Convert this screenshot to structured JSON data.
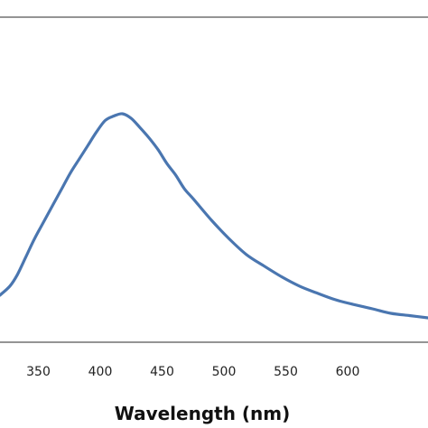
{
  "chart_data": {
    "type": "line",
    "title": "",
    "xlabel": "Wavelength (nm)",
    "ylabel": "",
    "xlim": [
      319,
      665
    ],
    "ylim": [
      0,
      1
    ],
    "x_ticks": [
      350,
      400,
      450,
      500,
      550,
      600
    ],
    "x_tick_labels": [
      "350",
      "400",
      "450",
      "500",
      "550",
      "600"
    ],
    "grid": false,
    "legend": "none",
    "series": [
      {
        "color": "#4a76b0",
        "x": [
          319,
          327,
          333,
          340,
          347,
          355,
          362,
          369,
          376,
          383,
          390,
          397,
          404,
          411,
          418,
          425,
          432,
          440,
          447,
          454,
          461,
          468,
          476,
          490,
          504,
          518,
          532,
          547,
          561,
          575,
          590,
          604,
          620,
          635,
          650,
          665
        ],
        "y": [
          0.1,
          0.14,
          0.19,
          0.27,
          0.35,
          0.43,
          0.5,
          0.57,
          0.64,
          0.7,
          0.76,
          0.82,
          0.87,
          0.89,
          0.9,
          0.88,
          0.84,
          0.79,
          0.74,
          0.68,
          0.63,
          0.57,
          0.52,
          0.43,
          0.35,
          0.28,
          0.23,
          0.18,
          0.14,
          0.11,
          0.08,
          0.06,
          0.04,
          0.02,
          0.01,
          0.0
        ]
      }
    ]
  }
}
